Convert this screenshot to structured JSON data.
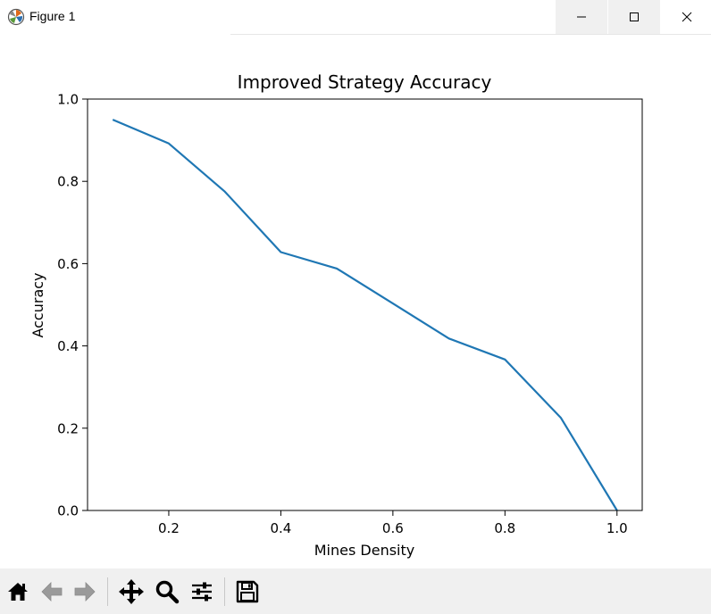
{
  "window": {
    "title": "Figure 1",
    "icons": {
      "app": "matplotlib-icon",
      "minimize": "minimize-icon",
      "maximize": "maximize-icon",
      "close": "close-icon"
    }
  },
  "toolbar": {
    "buttons": [
      {
        "name": "home-button",
        "icon": "home-icon"
      },
      {
        "name": "back-button",
        "icon": "arrow-left-icon"
      },
      {
        "name": "forward-button",
        "icon": "arrow-right-icon"
      },
      {
        "name": "pan-button",
        "icon": "move-icon"
      },
      {
        "name": "zoom-button",
        "icon": "magnifier-icon"
      },
      {
        "name": "configure-subplots-button",
        "icon": "sliders-icon"
      },
      {
        "name": "save-button",
        "icon": "floppy-disk-icon"
      }
    ]
  },
  "chart_data": {
    "type": "line",
    "title": "Improved Strategy Accuracy",
    "xlabel": "Mines Density",
    "ylabel": "Accuracy",
    "xlim": [
      0.055,
      1.045
    ],
    "ylim": [
      0.0,
      1.0
    ],
    "xticks": [
      0.2,
      0.4,
      0.6,
      0.8,
      1.0
    ],
    "xtick_labels": [
      "0.2",
      "0.4",
      "0.6",
      "0.8",
      "1.0"
    ],
    "yticks": [
      0.0,
      0.2,
      0.4,
      0.6,
      0.8,
      1.0
    ],
    "ytick_labels": [
      "0.0",
      "0.2",
      "0.4",
      "0.6",
      "0.8",
      "1.0"
    ],
    "grid": false,
    "line_color": "#1f77b4",
    "series": [
      {
        "x": [
          0.1,
          0.2,
          0.3,
          0.4,
          0.5,
          0.6,
          0.7,
          0.8,
          0.9,
          1.0
        ],
        "y": [
          0.95,
          0.892,
          0.775,
          0.628,
          0.588,
          0.503,
          0.418,
          0.367,
          0.225,
          0.0
        ]
      }
    ]
  }
}
